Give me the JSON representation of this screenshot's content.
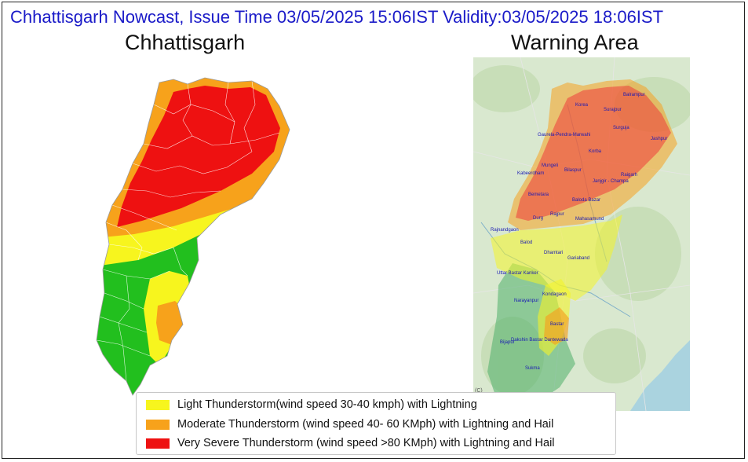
{
  "header": {
    "title": "Chhattisgarh Nowcast, Issue Time 03/05/2025 15:06IST  Validity:03/05/2025 18:06IST",
    "left_panel_title": "Chhattisgarh",
    "right_panel_title": "Warning Area"
  },
  "legend": {
    "items": [
      {
        "label": "Light Thunderstorm(wind speed 30-40 kmph) with Lightning",
        "color": "#f7f51e"
      },
      {
        "label": "Moderate Thunderstorm (wind speed 40- 60 KMph) with Lightning and Hail",
        "color": "#f7a21b"
      },
      {
        "label": "Very Severe Thunderstorm (wind speed >80 KMph) with Lightning and Hail",
        "color": "#ee1111"
      }
    ]
  },
  "colors": {
    "no_warning": "#22bf1e",
    "light": "#f7f51e",
    "moderate": "#f7a21b",
    "very_severe": "#ee1111",
    "title_text": "#1a1ac8",
    "district_label": "#1a1ab4"
  },
  "map_credit": "(C)",
  "districts": [
    "Balrampur",
    "Korea",
    "Surajpur",
    "Surguja",
    "Gaurela-Pendra-Marwahi",
    "Jashpur",
    "Korba",
    "Mungeli",
    "Bilaspur",
    "Kabeerdham",
    "Janjgir - Champa",
    "Raigarh",
    "Bemetara",
    "Baloda Bazar",
    "Rajpur",
    "Durg",
    "Mahasamund",
    "Rajnandgaon",
    "Balod",
    "Dhamtari",
    "Gariaband",
    "Uttar Bastar Kanker",
    "Kondagaon",
    "Narayanpur",
    "Bastar",
    "Bijapur",
    "Dakshin Bastar Dantewada",
    "Sukma"
  ]
}
